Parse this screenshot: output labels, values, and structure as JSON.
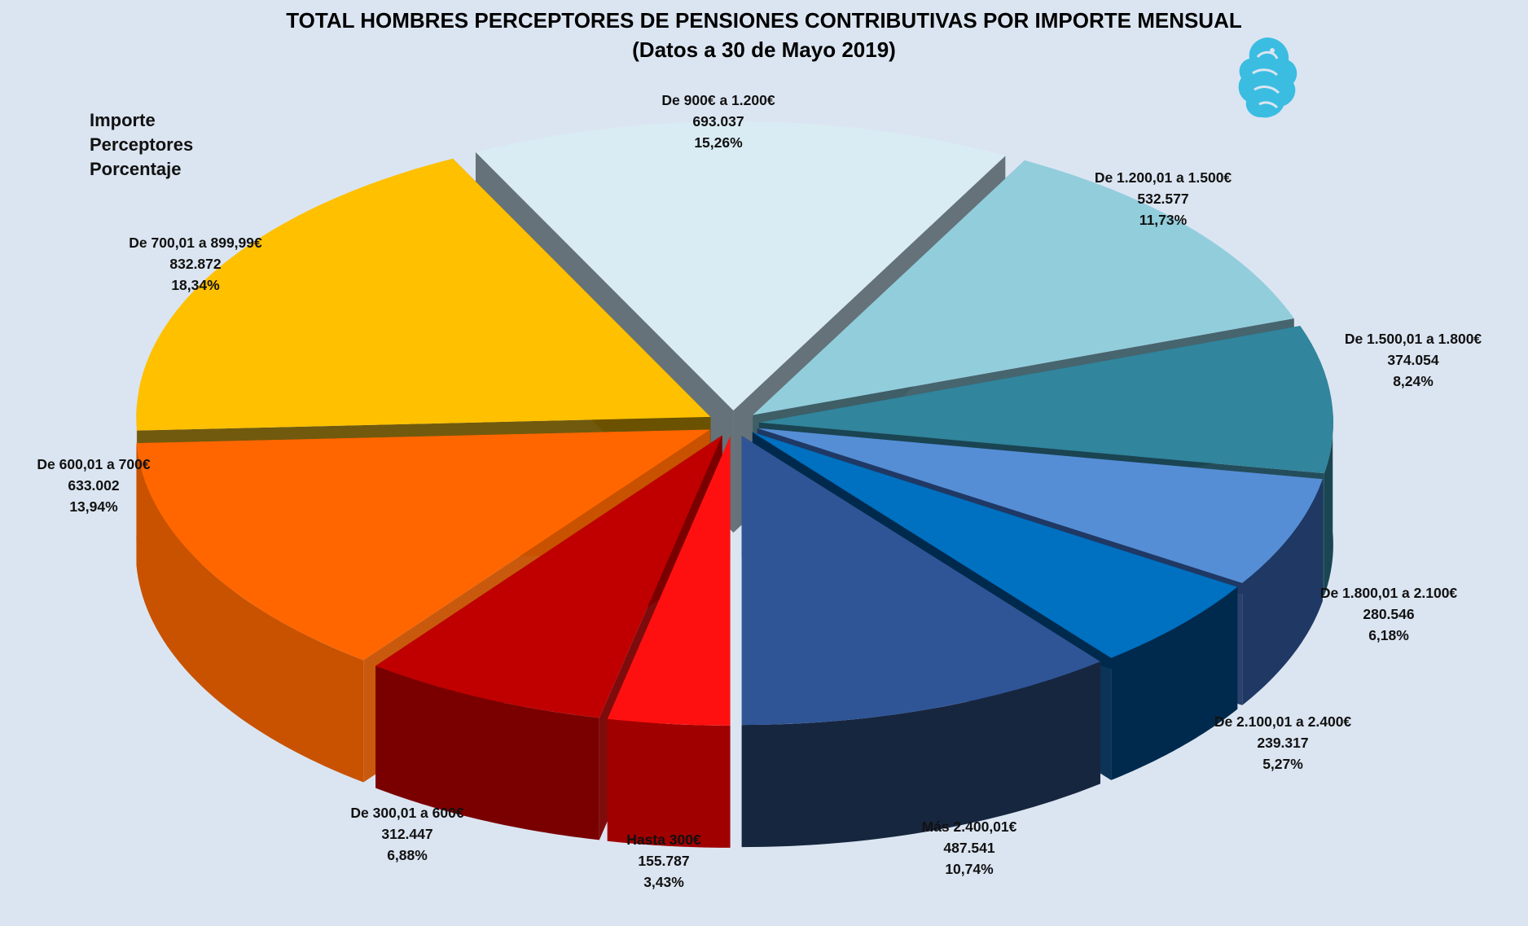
{
  "title": {
    "line1": "TOTAL HOMBRES PERCEPTORES  DE PENSIONES CONTRIBUTIVAS POR IMPORTE MENSUAL",
    "line2": "(Datos a 30 de Mayo 2019)"
  },
  "legend": {
    "importe": "Importe",
    "perceptores": "Perceptores",
    "porcentaje": "Porcentaje"
  },
  "logo": {
    "icon": "griffin-logo-icon",
    "color": "#29b8e0"
  },
  "chart_data": {
    "type": "pie",
    "style": "3d-exploded",
    "categories": [
      "Hasta 300€",
      "De 300,01 a 600€",
      "De 600,01 a 700€",
      "De 700,01 a 899,99€",
      "De 900€ a 1.200€",
      "De 1.200,01 a 1.500€",
      "De 1.500,01 a 1.800€",
      "De 1.800,01 a 2.100€",
      "De 2.100,01 a 2.400€",
      "Más 2.400,01€"
    ],
    "values": [
      155787,
      312447,
      633002,
      832872,
      693037,
      532577,
      374054,
      280546,
      239317,
      487541
    ],
    "value_labels": [
      "155.787",
      "312.447",
      "633.002",
      "832.872",
      "693.037",
      "532.577",
      "374.054",
      "280.546",
      "239.317",
      "487.541"
    ],
    "percent_labels": [
      "3,43%",
      "6,88%",
      "13,94%",
      "18,34%",
      "15,26%",
      "11,73%",
      "8,24%",
      "6,18%",
      "5,27%",
      "10,74%"
    ],
    "colors": [
      "#ff1010",
      "#c00000",
      "#ff6600",
      "#ffc000",
      "#daeef3",
      "#92cddc",
      "#31859c",
      "#558ed5",
      "#0070c0",
      "#2f5597"
    ],
    "side_colors": [
      "#a00000",
      "#7a0000",
      "#c85200",
      "#6b5200",
      "#5f6b72",
      "#3f5e66",
      "#1a4552",
      "#203864",
      "#002a4d",
      "#17263f"
    ]
  }
}
